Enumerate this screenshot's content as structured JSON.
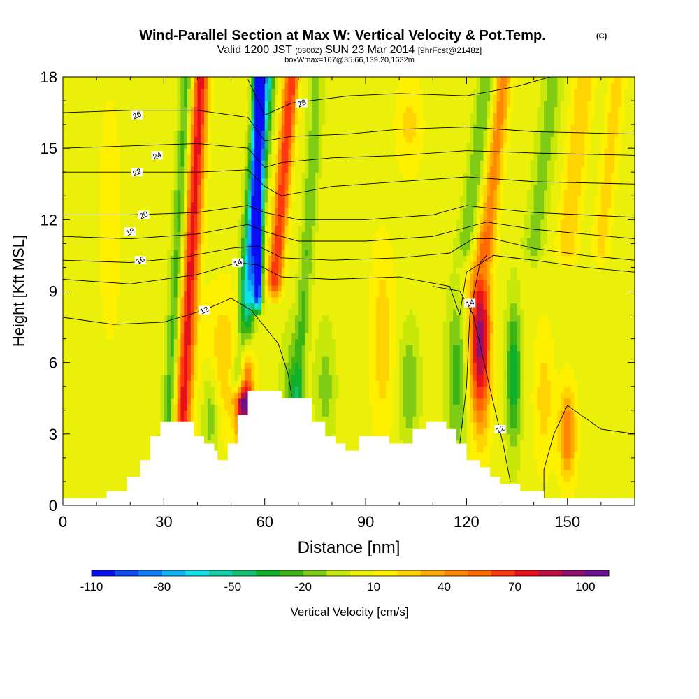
{
  "title": "Wind-Parallel Section at Max W: Vertical Velocity & Pot.Temp.",
  "copyright_mark": "(C)",
  "subtitle": {
    "valid": "Valid 1200 JST",
    "utc": "(0300Z)",
    "date": "SUN 23 Mar 2014",
    "fcst": "[9hrFcst@2148z]"
  },
  "subtitle2": "boxWmax=107@35.66,139.20,1632m",
  "chart_data": {
    "type": "heatmap",
    "xlabel": "Distance [nm]",
    "ylabel": "Height [Kft MSL]",
    "xlim": [
      0,
      170
    ],
    "ylim": [
      0,
      18
    ],
    "x_ticks": [
      {
        "value": 0,
        "label": "0"
      },
      {
        "value": 30,
        "label": "30"
      },
      {
        "value": 60,
        "label": "60"
      },
      {
        "value": 90,
        "label": "90"
      },
      {
        "value": 120,
        "label": "120"
      },
      {
        "value": 150,
        "label": "150"
      }
    ],
    "y_ticks": [
      {
        "value": 0,
        "label": "0"
      },
      {
        "value": 3,
        "label": "3"
      },
      {
        "value": 6,
        "label": "6"
      },
      {
        "value": 9,
        "label": "9"
      },
      {
        "value": 12,
        "label": "12"
      },
      {
        "value": 15,
        "label": "15"
      },
      {
        "value": 18,
        "label": "18"
      }
    ],
    "background_w": 5,
    "w_features": [
      {
        "x": 35,
        "xtop": 41,
        "y0": 2.0,
        "y1": 18,
        "w": 70,
        "hw": 2.5,
        "shape": "column"
      },
      {
        "x": 31,
        "xtop": 37,
        "y0": 2.5,
        "y1": 18,
        "w": -30,
        "hw": 2.0,
        "shape": "column"
      },
      {
        "x": 53,
        "xtop": 60,
        "y0": 5.5,
        "y1": 18,
        "w": -90,
        "hw": 2.5,
        "shape": "column"
      },
      {
        "x": 58,
        "xtop": 58,
        "y0": 9.0,
        "y1": 18,
        "w": -110,
        "hw": 1.2,
        "shape": "column"
      },
      {
        "x": 63,
        "xtop": 68,
        "y0": 9.5,
        "y1": 18,
        "w": 65,
        "hw": 2.2,
        "shape": "column"
      },
      {
        "x": 54,
        "y": 5.0,
        "w": 105,
        "hw": 2.3,
        "hh": 2.8
      },
      {
        "x": 48,
        "y": 6.0,
        "w": 25,
        "hw": 6.0,
        "hh": 3.0
      },
      {
        "x": 44,
        "y": 4.0,
        "w": -30,
        "hw": 2.5,
        "hh": 2.0
      },
      {
        "x": 68,
        "y": 4.0,
        "w": -30,
        "hw": 3.0,
        "hh": 3.0
      },
      {
        "x": 69,
        "xtop": 75,
        "y0": 3.0,
        "y1": 16,
        "w": -25,
        "hw": 2.0,
        "shape": "column"
      },
      {
        "x": 78,
        "y": 5.0,
        "w": -20,
        "hw": 3.0,
        "hh": 2.5
      },
      {
        "x": 95,
        "y": 7.0,
        "w": 22,
        "hw": 3.5,
        "hh": 4.0
      },
      {
        "x": 103,
        "y": 5.0,
        "w": -25,
        "hw": 3.0,
        "hh": 2.5
      },
      {
        "x": 117,
        "y": 5.5,
        "w": -30,
        "hw": 3.0,
        "hh": 3.5
      },
      {
        "x": 124,
        "y": 6.5,
        "w": 85,
        "hw": 3.0,
        "hh": 3.2
      },
      {
        "x": 124,
        "y": 9.0,
        "w": 20,
        "hw": 4.0,
        "hh": 2.0
      },
      {
        "x": 134,
        "y": 5.5,
        "w": -45,
        "hw": 2.2,
        "hh": 3.0
      },
      {
        "x": 143,
        "y": 4.5,
        "w": 20,
        "hw": 3.0,
        "hh": 3.0
      },
      {
        "x": 150,
        "y": 3.0,
        "w": 45,
        "hw": 2.5,
        "hh": 2.0
      },
      {
        "x": 120,
        "xtop": 126,
        "y0": 11.0,
        "y1": 18,
        "w": -25,
        "hw": 2.5,
        "shape": "column"
      },
      {
        "x": 126,
        "xtop": 131,
        "y0": 11.0,
        "y1": 18,
        "w": 40,
        "hw": 2.5,
        "shape": "column"
      },
      {
        "x": 140,
        "xtop": 146,
        "y0": 11.0,
        "y1": 18,
        "w": -20,
        "hw": 3.0,
        "shape": "column"
      },
      {
        "x": 150,
        "xtop": 155,
        "y0": 11.0,
        "y1": 18,
        "w": 25,
        "hw": 3.0,
        "shape": "column"
      },
      {
        "x": 160,
        "xtop": 165,
        "y0": 11.0,
        "y1": 18,
        "w": 20,
        "hw": 2.5,
        "shape": "column"
      },
      {
        "x": 103,
        "y": 16.0,
        "w": 18,
        "hw": 4.0,
        "hh": 2.0
      },
      {
        "x": 14,
        "y": 12.0,
        "w": 10,
        "hw": 4.0,
        "hh": 6.0
      }
    ],
    "terrain": [
      [
        0,
        0.3
      ],
      [
        13,
        0.3
      ],
      [
        13,
        0.6
      ],
      [
        19,
        0.6
      ],
      [
        19,
        1.2
      ],
      [
        23,
        1.2
      ],
      [
        23,
        1.9
      ],
      [
        26,
        1.9
      ],
      [
        26,
        2.9
      ],
      [
        29,
        2.9
      ],
      [
        29,
        3.5
      ],
      [
        39,
        3.5
      ],
      [
        39,
        2.9
      ],
      [
        42,
        2.9
      ],
      [
        42,
        2.6
      ],
      [
        45,
        2.6
      ],
      [
        45,
        2.3
      ],
      [
        46,
        2.3
      ],
      [
        46,
        1.9
      ],
      [
        49,
        1.9
      ],
      [
        49,
        2.6
      ],
      [
        52,
        2.6
      ],
      [
        52,
        3.8
      ],
      [
        55,
        3.8
      ],
      [
        55,
        4.8
      ],
      [
        65,
        4.8
      ],
      [
        65,
        4.5
      ],
      [
        74,
        4.5
      ],
      [
        74,
        3.5
      ],
      [
        78,
        3.5
      ],
      [
        78,
        2.9
      ],
      [
        81,
        2.9
      ],
      [
        81,
        2.6
      ],
      [
        84,
        2.6
      ],
      [
        84,
        2.3
      ],
      [
        88,
        2.3
      ],
      [
        88,
        2.9
      ],
      [
        97,
        2.9
      ],
      [
        97,
        2.6
      ],
      [
        104,
        2.6
      ],
      [
        104,
        3.2
      ],
      [
        108,
        3.2
      ],
      [
        108,
        3.5
      ],
      [
        114,
        3.5
      ],
      [
        114,
        3.2
      ],
      [
        117,
        3.2
      ],
      [
        117,
        2.6
      ],
      [
        120,
        2.6
      ],
      [
        120,
        1.9
      ],
      [
        124,
        1.9
      ],
      [
        124,
        1.6
      ],
      [
        127,
        1.6
      ],
      [
        127,
        1.2
      ],
      [
        130,
        1.2
      ],
      [
        130,
        0.9
      ],
      [
        136,
        0.9
      ],
      [
        136,
        0.6
      ],
      [
        143,
        0.6
      ],
      [
        143,
        0.3
      ],
      [
        170,
        0.3
      ]
    ],
    "theta_contours": [
      {
        "value": 12,
        "points": [
          [
            0,
            7.9
          ],
          [
            15,
            7.6
          ],
          [
            30,
            7.7
          ],
          [
            42,
            8.2
          ],
          [
            50,
            8.7
          ],
          [
            56,
            8.2
          ],
          [
            60,
            7.5
          ],
          [
            64,
            6.8
          ],
          [
            67,
            5.5
          ],
          [
            68,
            4.6
          ]
        ],
        "label": "12",
        "label_at": [
          42,
          8.2
        ]
      },
      {
        "value": 12,
        "points": [
          [
            110,
            9.2
          ],
          [
            118,
            9.0
          ],
          [
            122,
            8.0
          ],
          [
            126,
            5.5
          ],
          [
            131,
            2.5
          ],
          [
            133,
            1.0
          ]
        ],
        "label": "12",
        "label_at": [
          130,
          3.2
        ]
      },
      {
        "value": 12,
        "points": [
          [
            170,
            3.0
          ],
          [
            160,
            3.2
          ],
          [
            150,
            4.2
          ],
          [
            146,
            3.0
          ],
          [
            143,
            1.5
          ],
          [
            143,
            0.3
          ]
        ],
        "label": "",
        "label_at": null
      },
      {
        "value": 14,
        "points": [
          [
            0,
            9.5
          ],
          [
            20,
            9.3
          ],
          [
            40,
            9.7
          ],
          [
            52,
            10.2
          ],
          [
            58,
            10.1
          ],
          [
            65,
            9.6
          ],
          [
            80,
            9.5
          ],
          [
            100,
            9.6
          ],
          [
            115,
            9.2
          ],
          [
            118,
            8.0
          ],
          [
            120,
            9.8
          ],
          [
            128,
            10.5
          ],
          [
            140,
            10.3
          ],
          [
            155,
            10.0
          ],
          [
            170,
            9.8
          ]
        ],
        "label": "14",
        "label_at": [
          52,
          10.2
        ]
      },
      {
        "value": 14,
        "points": [
          [
            118,
            2.6
          ],
          [
            120,
            5.0
          ],
          [
            121,
            8.0
          ],
          [
            124,
            10.2
          ],
          [
            126,
            10.5
          ]
        ],
        "label": "14",
        "label_at": [
          121,
          8.5
        ]
      },
      {
        "value": 16,
        "points": [
          [
            0,
            10.3
          ],
          [
            20,
            10.2
          ],
          [
            35,
            10.4
          ],
          [
            50,
            10.8
          ],
          [
            58,
            10.9
          ],
          [
            65,
            10.4
          ],
          [
            80,
            10.3
          ],
          [
            100,
            10.4
          ],
          [
            115,
            10.6
          ],
          [
            122,
            11.2
          ],
          [
            128,
            11.2
          ],
          [
            140,
            10.8
          ],
          [
            155,
            10.5
          ],
          [
            170,
            10.3
          ]
        ],
        "label": "16",
        "label_at": [
          23,
          10.3
        ]
      },
      {
        "value": 18,
        "points": [
          [
            0,
            11.3
          ],
          [
            20,
            11.2
          ],
          [
            40,
            11.4
          ],
          [
            55,
            11.8
          ],
          [
            60,
            11.5
          ],
          [
            70,
            11.1
          ],
          [
            90,
            11.1
          ],
          [
            110,
            11.3
          ],
          [
            118,
            11.6
          ],
          [
            126,
            11.9
          ],
          [
            140,
            11.6
          ],
          [
            155,
            11.4
          ],
          [
            170,
            11.2
          ]
        ],
        "label": "18",
        "label_at": [
          20,
          11.5
        ]
      },
      {
        "value": 20,
        "points": [
          [
            0,
            12.2
          ],
          [
            20,
            12.2
          ],
          [
            40,
            12.3
          ],
          [
            55,
            12.6
          ],
          [
            60,
            12.3
          ],
          [
            70,
            12.0
          ],
          [
            90,
            12.0
          ],
          [
            110,
            12.2
          ],
          [
            120,
            12.6
          ],
          [
            126,
            12.5
          ],
          [
            140,
            12.3
          ],
          [
            155,
            12.2
          ],
          [
            170,
            12.1
          ]
        ],
        "label": "20",
        "label_at": [
          24,
          12.2
        ]
      },
      {
        "value": 22,
        "points": [
          [
            0,
            14.0
          ],
          [
            20,
            14.0
          ],
          [
            40,
            14.0
          ],
          [
            55,
            14.1
          ],
          [
            60,
            13.4
          ],
          [
            65,
            13.0
          ],
          [
            80,
            13.4
          ],
          [
            100,
            13.6
          ],
          [
            120,
            13.8
          ],
          [
            140,
            13.6
          ],
          [
            170,
            13.5
          ]
        ],
        "label": "22",
        "label_at": [
          22,
          14.0
        ]
      },
      {
        "value": 24,
        "points": [
          [
            0,
            15.0
          ],
          [
            20,
            15.1
          ],
          [
            40,
            15.2
          ],
          [
            55,
            15.0
          ],
          [
            60,
            14.2
          ],
          [
            65,
            14.4
          ],
          [
            80,
            14.6
          ],
          [
            100,
            14.7
          ],
          [
            120,
            14.9
          ],
          [
            140,
            14.8
          ],
          [
            170,
            14.7
          ]
        ],
        "label": "24",
        "label_at": [
          28,
          14.7
        ]
      },
      {
        "value": 26,
        "points": [
          [
            0,
            16.5
          ],
          [
            20,
            16.6
          ],
          [
            40,
            16.6
          ],
          [
            55,
            16.3
          ],
          [
            60,
            15.3
          ],
          [
            68,
            15.5
          ],
          [
            85,
            15.6
          ],
          [
            100,
            15.8
          ],
          [
            120,
            15.9
          ],
          [
            140,
            15.7
          ],
          [
            170,
            15.6
          ]
        ],
        "label": "26",
        "label_at": [
          22,
          16.4
        ]
      },
      {
        "value": 28,
        "points": [
          [
            55,
            17.9
          ],
          [
            60,
            16.4
          ],
          [
            68,
            16.9
          ],
          [
            85,
            17.2
          ],
          [
            100,
            17.3
          ],
          [
            120,
            17.2
          ],
          [
            135,
            17.6
          ],
          [
            145,
            18.0
          ]
        ],
        "label": "28",
        "label_at": [
          71,
          16.9
        ]
      }
    ],
    "colorbar": {
      "label": "Vertical Velocity [cm/s]",
      "min": -110,
      "max": 110,
      "tick_labels": [
        {
          "value": -110,
          "label": "-110"
        },
        {
          "value": -80,
          "label": "-80"
        },
        {
          "value": -50,
          "label": "-50"
        },
        {
          "value": -20,
          "label": "-20"
        },
        {
          "value": 10,
          "label": "10"
        },
        {
          "value": 40,
          "label": "40"
        },
        {
          "value": 70,
          "label": "70"
        },
        {
          "value": 100,
          "label": "100"
        }
      ],
      "colors": [
        "#0a0ff5",
        "#0f4cf5",
        "#0f7ef8",
        "#12b4f5",
        "#10e0e8",
        "#10d0a8",
        "#16c070",
        "#10b02a",
        "#3cb414",
        "#80cc14",
        "#c8e80a",
        "#eaf00a",
        "#fff000",
        "#ffd400",
        "#ffaa00",
        "#ff8800",
        "#ff6a00",
        "#ff3810",
        "#e8101a",
        "#c01040",
        "#901070",
        "#6a1090"
      ]
    }
  }
}
